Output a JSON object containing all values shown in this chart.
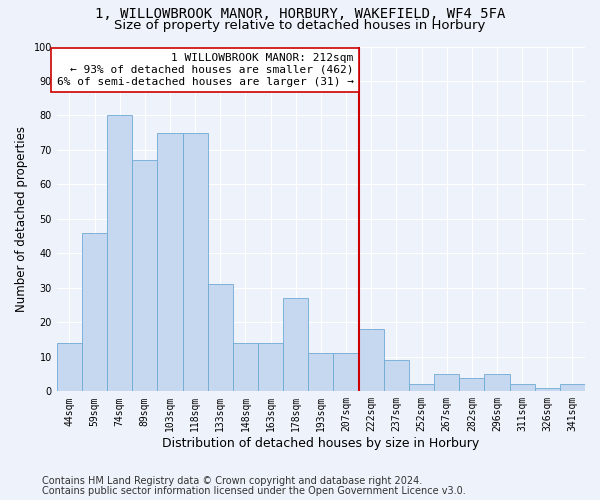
{
  "title1": "1, WILLOWBROOK MANOR, HORBURY, WAKEFIELD, WF4 5FA",
  "title2": "Size of property relative to detached houses in Horbury",
  "xlabel": "Distribution of detached houses by size in Horbury",
  "ylabel": "Number of detached properties",
  "categories": [
    "44sqm",
    "59sqm",
    "74sqm",
    "89sqm",
    "103sqm",
    "118sqm",
    "133sqm",
    "148sqm",
    "163sqm",
    "178sqm",
    "193sqm",
    "207sqm",
    "222sqm",
    "237sqm",
    "252sqm",
    "267sqm",
    "282sqm",
    "296sqm",
    "311sqm",
    "326sqm",
    "341sqm"
  ],
  "values": [
    14,
    46,
    80,
    67,
    75,
    75,
    31,
    14,
    14,
    27,
    11,
    11,
    18,
    9,
    2,
    5,
    4,
    5,
    2,
    1,
    2
  ],
  "bar_color": "#c5d8f0",
  "bar_edge_color": "#6eaad4",
  "vline_x": 11.5,
  "vline_color": "#cc0000",
  "annotation_text": "1 WILLOWBROOK MANOR: 212sqm\n← 93% of detached houses are smaller (462)\n6% of semi-detached houses are larger (31) →",
  "annotation_box_color": "#ffffff",
  "annotation_box_edge": "#cc0000",
  "footnote1": "Contains HM Land Registry data © Crown copyright and database right 2024.",
  "footnote2": "Contains public sector information licensed under the Open Government Licence v3.0.",
  "ylim": [
    0,
    100
  ],
  "yticks": [
    0,
    10,
    20,
    30,
    40,
    50,
    60,
    70,
    80,
    90,
    100
  ],
  "background_color": "#eef2fa",
  "grid_color": "#ffffff",
  "title1_fontsize": 10,
  "title2_fontsize": 9.5,
  "xlabel_fontsize": 9,
  "ylabel_fontsize": 8.5,
  "annotation_fontsize": 8,
  "tick_fontsize": 7,
  "footnote_fontsize": 7
}
